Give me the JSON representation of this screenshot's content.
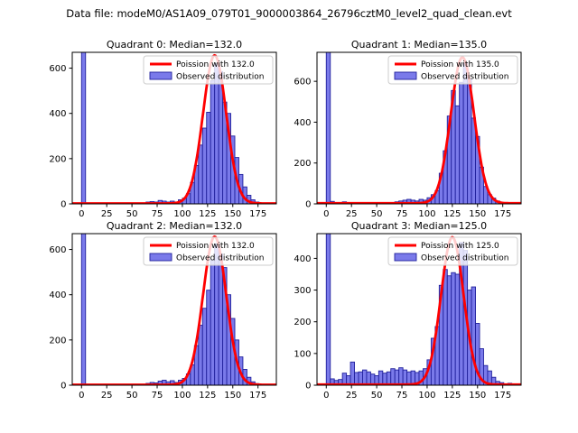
{
  "figure": {
    "title": "Data file: modeM0/AS1A09_079T01_9000003864_26796cztM0_level2_quad_clean.evt",
    "background": "#ffffff"
  },
  "colors": {
    "curve": "#ff0000",
    "bar_fill": "#6f6fe8",
    "bar_edge": "#22229d",
    "axis": "#000000",
    "legend_border": "#cccccc"
  },
  "chart_data": [
    {
      "type": "bar",
      "quadrant": 0,
      "title": "Quadrant 0: Median=132.0",
      "median": 132.0,
      "legend": [
        "Poission with 132.0",
        "Observed distribution"
      ],
      "legend_position": "upper right",
      "xlabel": "",
      "ylabel": "",
      "bin_start": 0,
      "bin_width": 4,
      "values": [
        2000,
        0,
        0,
        0,
        0,
        2,
        0,
        0,
        2,
        0,
        0,
        2,
        0,
        0,
        2,
        3,
        8,
        10,
        8,
        15,
        12,
        8,
        12,
        8,
        18,
        25,
        45,
        95,
        170,
        260,
        335,
        405,
        545,
        620,
        585,
        450,
        400,
        300,
        205,
        130,
        75,
        38,
        18,
        8,
        4,
        2
      ],
      "curve": {
        "type": "poisson-fit",
        "center": 132,
        "sigma": 11.5,
        "amplitude": 655,
        "baseline": 2
      },
      "xlim": [
        -9.2,
        193.2
      ],
      "ylim": [
        0,
        670
      ],
      "xticks": [
        0,
        25,
        50,
        75,
        100,
        125,
        150,
        175
      ],
      "yticks": [
        0,
        200,
        400,
        600
      ],
      "note": "first bin (0) extends beyond top of y-axis (clipped)"
    },
    {
      "type": "bar",
      "quadrant": 1,
      "title": "Quadrant 1: Median=135.0",
      "median": 135.0,
      "legend": [
        "Poission with 135.0",
        "Observed distribution"
      ],
      "legend_position": "upper right",
      "xlabel": "",
      "ylabel": "",
      "bin_start": 0,
      "bin_width": 4,
      "values": [
        2000,
        12,
        4,
        3,
        10,
        3,
        3,
        4,
        3,
        3,
        4,
        3,
        4,
        4,
        3,
        6,
        6,
        10,
        14,
        18,
        22,
        18,
        14,
        22,
        18,
        30,
        45,
        65,
        150,
        260,
        430,
        555,
        480,
        595,
        690,
        610,
        420,
        330,
        180,
        85,
        45,
        28,
        14,
        7,
        3,
        2
      ],
      "curve": {
        "type": "poisson-fit",
        "center": 135,
        "sigma": 11.6,
        "amplitude": 715,
        "baseline": 3
      },
      "xlim": [
        -9.2,
        193.2
      ],
      "ylim": [
        0,
        742
      ],
      "xticks": [
        0,
        25,
        50,
        75,
        100,
        125,
        150,
        175
      ],
      "yticks": [
        0,
        200,
        400,
        600
      ],
      "note": "first bin (0) extends beyond top of y-axis (clipped)"
    },
    {
      "type": "bar",
      "quadrant": 2,
      "title": "Quadrant 2: Median=132.0",
      "median": 132.0,
      "legend": [
        "Poission with 132.0",
        "Observed distribution"
      ],
      "legend_position": "upper right",
      "xlabel": "",
      "ylabel": "",
      "bin_start": 0,
      "bin_width": 4,
      "values": [
        2000,
        0,
        0,
        0,
        2,
        0,
        0,
        2,
        0,
        0,
        2,
        0,
        0,
        2,
        2,
        3,
        8,
        12,
        10,
        18,
        22,
        15,
        20,
        12,
        22,
        30,
        50,
        90,
        175,
        265,
        340,
        420,
        555,
        625,
        580,
        520,
        400,
        295,
        200,
        125,
        70,
        35,
        15,
        7,
        3,
        2
      ],
      "curve": {
        "type": "poisson-fit",
        "center": 132,
        "sigma": 11.5,
        "amplitude": 655,
        "baseline": 2
      },
      "xlim": [
        -9.2,
        193.2
      ],
      "ylim": [
        0,
        670
      ],
      "xticks": [
        0,
        25,
        50,
        75,
        100,
        125,
        150,
        175
      ],
      "yticks": [
        0,
        200,
        400,
        600
      ],
      "note": "first bin (0) extends beyond top of y-axis (clipped)"
    },
    {
      "type": "bar",
      "quadrant": 3,
      "title": "Quadrant 3: Median=125.0",
      "median": 125.0,
      "legend": [
        "Poission with 125.0",
        "Observed distribution"
      ],
      "legend_position": "upper right",
      "xlabel": "",
      "ylabel": "",
      "bin_start": 0,
      "bin_width": 4,
      "values": [
        2000,
        20,
        15,
        18,
        38,
        30,
        73,
        40,
        42,
        48,
        42,
        35,
        30,
        45,
        38,
        42,
        52,
        48,
        55,
        48,
        42,
        45,
        40,
        45,
        52,
        80,
        148,
        185,
        315,
        365,
        345,
        355,
        350,
        450,
        425,
        300,
        310,
        195,
        115,
        62,
        45,
        25,
        12,
        8,
        4,
        6
      ],
      "curve": {
        "type": "poisson-fit",
        "center": 125,
        "sigma": 11.2,
        "amplitude": 465,
        "baseline": 2
      },
      "xlim": [
        -9.2,
        193.2
      ],
      "ylim": [
        0,
        478
      ],
      "xticks": [
        0,
        25,
        50,
        75,
        100,
        125,
        150,
        175
      ],
      "yticks": [
        0,
        100,
        200,
        300,
        400
      ],
      "note": "first bin (0) extends beyond top of y-axis (clipped)"
    }
  ]
}
